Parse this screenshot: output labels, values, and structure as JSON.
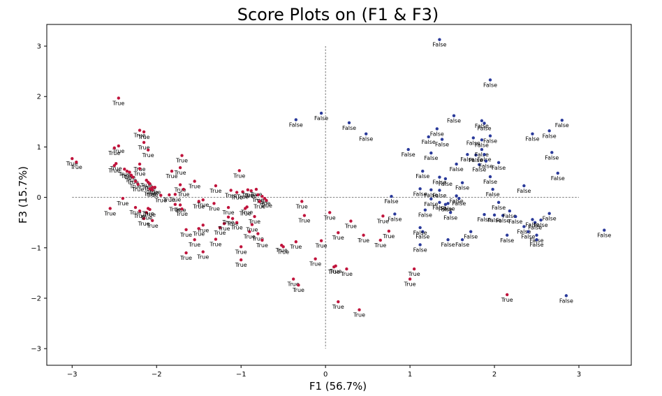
{
  "chart_data": {
    "type": "scatter",
    "title": "Score Plots on (F1 & F3)",
    "xlabel": "F1 (56.7%)",
    "ylabel": "F3 (15.7%)",
    "xlim": [
      -3.3,
      3.62
    ],
    "ylim": [
      -3.33,
      3.43
    ],
    "xticks": [
      -3,
      -2,
      -1,
      0,
      1,
      2,
      3
    ],
    "yticks": [
      -3,
      -2,
      -1,
      0,
      1,
      2,
      3
    ],
    "xtick_labels": [
      "−3",
      "−2",
      "−1",
      "0",
      "1",
      "2",
      "3"
    ],
    "ytick_labels": [
      "−3",
      "−2",
      "−1",
      "0",
      "1",
      "2",
      "3"
    ],
    "reference_lines": {
      "horizontal_x_range": [
        -3.0,
        3.0
      ],
      "vertical_y_range": [
        -3.0,
        3.0
      ]
    },
    "grid": false,
    "colors": {
      "True": "#c0143c",
      "False": "#2a3a9a"
    },
    "series": [
      {
        "name": "True",
        "points": [
          [
            -3.0,
            0.77
          ],
          [
            -2.95,
            0.7
          ],
          [
            -2.45,
            1.97
          ],
          [
            -2.45,
            1.02
          ],
          [
            -2.5,
            0.98
          ],
          [
            -2.48,
            0.67
          ],
          [
            -2.5,
            0.63
          ],
          [
            -2.38,
            0.56
          ],
          [
            -2.35,
            0.52
          ],
          [
            -2.32,
            0.5
          ],
          [
            -2.3,
            0.44
          ],
          [
            -2.28,
            0.4
          ],
          [
            -2.25,
            0.32
          ],
          [
            -2.22,
            0.26
          ],
          [
            -2.2,
            1.33
          ],
          [
            -2.15,
            1.3
          ],
          [
            -2.15,
            1.09
          ],
          [
            -2.1,
            0.94
          ],
          [
            -2.2,
            0.66
          ],
          [
            -2.2,
            0.57
          ],
          [
            -2.12,
            0.34
          ],
          [
            -2.1,
            0.3
          ],
          [
            -2.08,
            0.27
          ],
          [
            -2.05,
            0.2
          ],
          [
            -2.02,
            0.2
          ],
          [
            -2.08,
            0.17
          ],
          [
            -2.05,
            0.15
          ],
          [
            -1.95,
            0.04
          ],
          [
            -1.85,
            0.05
          ],
          [
            -1.78,
            0.06
          ],
          [
            -1.82,
            0.52
          ],
          [
            -1.7,
            0.83
          ],
          [
            -1.72,
            0.59
          ],
          [
            -1.72,
            0.25
          ],
          [
            -1.68,
            0.16
          ],
          [
            -1.78,
            -0.14
          ],
          [
            -1.72,
            -0.15
          ],
          [
            -1.55,
            0.32
          ],
          [
            -1.3,
            0.23
          ],
          [
            -1.12,
            0.14
          ],
          [
            -1.02,
            0.53
          ],
          [
            -1.05,
            0.1
          ],
          [
            -0.98,
            0.11
          ],
          [
            -0.92,
            0.15
          ],
          [
            -0.88,
            0.13
          ],
          [
            -0.82,
            0.16
          ],
          [
            -0.8,
            0.05
          ],
          [
            -0.75,
            0.02
          ],
          [
            -0.72,
            -0.02
          ],
          [
            -0.7,
            -0.06
          ],
          [
            -2.55,
            -0.22
          ],
          [
            -2.4,
            -0.02
          ],
          [
            -2.25,
            -0.2
          ],
          [
            -2.2,
            -0.27
          ],
          [
            -2.15,
            -0.42
          ],
          [
            -2.12,
            -0.3
          ],
          [
            -2.1,
            -0.22
          ],
          [
            -2.05,
            -0.46
          ],
          [
            -2.08,
            -0.24
          ],
          [
            -1.7,
            -0.23
          ],
          [
            -1.65,
            -0.64
          ],
          [
            -1.55,
            -0.84
          ],
          [
            -1.45,
            -0.55
          ],
          [
            -1.5,
            -0.08
          ],
          [
            -1.45,
            -0.05
          ],
          [
            -1.5,
            -0.62
          ],
          [
            -1.45,
            -1.08
          ],
          [
            -1.65,
            -1.1
          ],
          [
            -1.3,
            -0.83
          ],
          [
            -1.32,
            -0.12
          ],
          [
            -1.25,
            -0.6
          ],
          [
            -1.2,
            -0.52
          ],
          [
            -1.15,
            -0.39
          ],
          [
            -1.15,
            -0.2
          ],
          [
            -1.1,
            -0.42
          ],
          [
            -1.05,
            -0.5
          ],
          [
            -1.0,
            -0.98
          ],
          [
            -0.95,
            -0.22
          ],
          [
            -0.93,
            -0.19
          ],
          [
            -0.9,
            -0.68
          ],
          [
            -0.87,
            -0.54
          ],
          [
            -0.84,
            -0.38
          ],
          [
            -0.8,
            -0.72
          ],
          [
            -0.78,
            -0.08
          ],
          [
            -0.75,
            -0.85
          ],
          [
            -0.52,
            -0.95
          ],
          [
            -0.5,
            -0.98
          ],
          [
            -0.35,
            -0.88
          ],
          [
            -1.0,
            -1.24
          ],
          [
            -0.28,
            -0.08
          ],
          [
            -0.25,
            -0.36
          ],
          [
            -0.38,
            -1.62
          ],
          [
            -0.32,
            -1.74
          ],
          [
            -0.12,
            -1.22
          ],
          [
            -0.05,
            -0.86
          ],
          [
            0.05,
            -0.3
          ],
          [
            0.1,
            -1.38
          ],
          [
            0.12,
            -1.36
          ],
          [
            0.15,
            -0.7
          ],
          [
            0.15,
            -2.07
          ],
          [
            0.25,
            -1.42
          ],
          [
            0.3,
            -0.47
          ],
          [
            0.4,
            -2.23
          ],
          [
            0.45,
            -0.75
          ],
          [
            0.65,
            -0.85
          ],
          [
            0.68,
            -0.37
          ],
          [
            0.75,
            -0.67
          ],
          [
            1.0,
            -1.62
          ],
          [
            1.05,
            -1.42
          ],
          [
            2.15,
            -1.93
          ]
        ]
      },
      {
        "name": "False",
        "points": [
          [
            -0.35,
            1.54
          ],
          [
            -0.05,
            1.67
          ],
          [
            0.28,
            1.48
          ],
          [
            0.48,
            1.26
          ],
          [
            0.78,
            0.02
          ],
          [
            0.82,
            -0.33
          ],
          [
            0.98,
            0.95
          ],
          [
            1.15,
            0.52
          ],
          [
            1.12,
            0.17
          ],
          [
            1.15,
            -0.68
          ],
          [
            1.12,
            -0.94
          ],
          [
            1.22,
            1.2
          ],
          [
            1.25,
            0.88
          ],
          [
            1.25,
            0.15
          ],
          [
            1.25,
            -0.03
          ],
          [
            1.18,
            -0.25
          ],
          [
            1.32,
            1.36
          ],
          [
            1.38,
            1.15
          ],
          [
            1.35,
            0.4
          ],
          [
            1.42,
            0.37
          ],
          [
            1.35,
            0.14
          ],
          [
            1.35,
            -0.1
          ],
          [
            1.42,
            -0.14
          ],
          [
            1.45,
            -0.84
          ],
          [
            1.48,
            -0.3
          ],
          [
            1.52,
            1.62
          ],
          [
            1.55,
            0.66
          ],
          [
            1.55,
            0.03
          ],
          [
            1.58,
            -0.02
          ],
          [
            1.62,
            0.29
          ],
          [
            1.62,
            -0.84
          ],
          [
            1.68,
            0.85
          ],
          [
            1.72,
            -0.68
          ],
          [
            1.78,
            0.84
          ],
          [
            1.82,
            0.65
          ],
          [
            1.85,
            1.52
          ],
          [
            1.88,
            1.47
          ],
          [
            1.85,
            1.14
          ],
          [
            1.85,
            0.95
          ],
          [
            1.88,
            0.85
          ],
          [
            1.9,
            0.72
          ],
          [
            1.95,
            1.22
          ],
          [
            1.95,
            0.41
          ],
          [
            1.98,
            0.16
          ],
          [
            2.0,
            -0.35
          ],
          [
            2.05,
            -0.1
          ],
          [
            2.05,
            0.69
          ],
          [
            2.1,
            -0.36
          ],
          [
            2.15,
            -0.75
          ],
          [
            2.18,
            -0.27
          ],
          [
            2.25,
            -0.38
          ],
          [
            2.35,
            0.23
          ],
          [
            2.35,
            -0.58
          ],
          [
            2.4,
            -0.68
          ],
          [
            2.45,
            -0.44
          ],
          [
            2.48,
            -0.5
          ],
          [
            2.5,
            -0.75
          ],
          [
            2.5,
            -0.84
          ],
          [
            2.55,
            -0.45
          ],
          [
            2.65,
            -0.32
          ],
          [
            2.65,
            1.32
          ],
          [
            2.68,
            0.89
          ],
          [
            2.75,
            0.48
          ],
          [
            2.8,
            1.53
          ],
          [
            1.95,
            2.33
          ],
          [
            1.35,
            3.13
          ],
          [
            3.3,
            -0.65
          ],
          [
            2.85,
            -1.95
          ],
          [
            2.45,
            1.26
          ],
          [
            1.88,
            -0.34
          ],
          [
            1.45,
            -0.12
          ],
          [
            1.12,
            -0.6
          ],
          [
            1.75,
            1.18
          ]
        ]
      }
    ]
  }
}
